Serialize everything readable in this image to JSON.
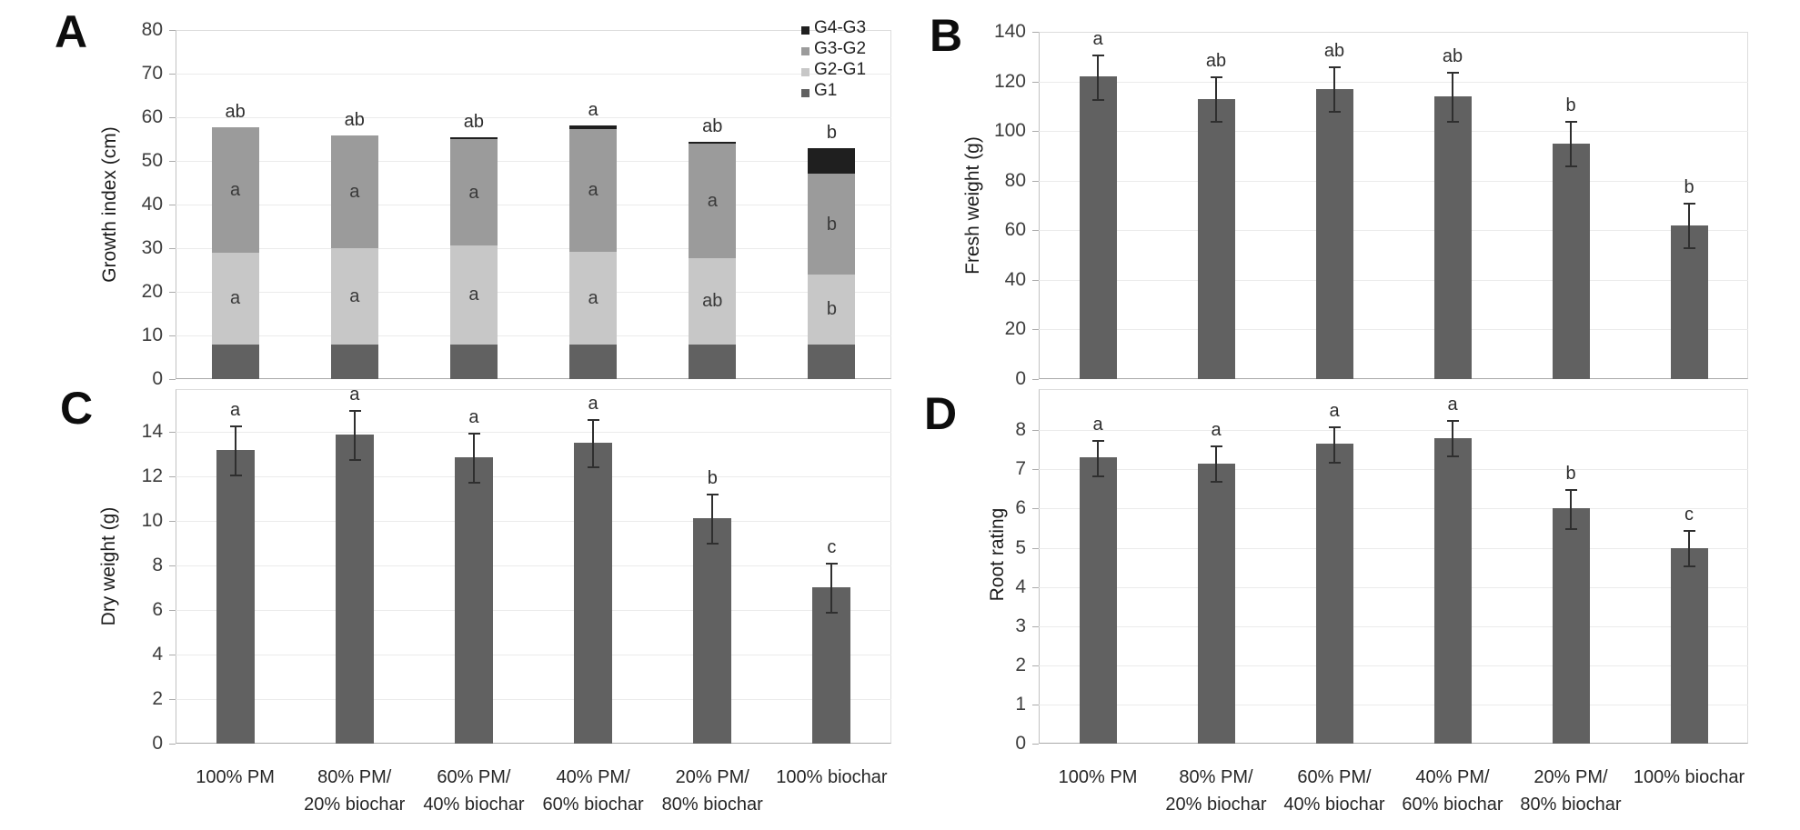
{
  "chart_data": [
    {
      "panel": "A",
      "type": "stacked-bar",
      "ylabel": "Growth index (cm)",
      "ylim": [
        0,
        80
      ],
      "yticks": [
        0,
        10,
        20,
        30,
        40,
        50,
        60,
        70,
        80
      ],
      "grid": true,
      "show_x_labels": false,
      "categories": [
        "100% PM",
        "80% PM/\n20% biochar",
        "60% PM/\n40% biochar",
        "40% PM/\n60% biochar",
        "20% PM/\n80% biochar",
        "100% biochar"
      ],
      "legend_position": "top-right-inside",
      "legend": [
        {
          "label": "G4-G3",
          "color": "#1f1f1f"
        },
        {
          "label": "G3-G2",
          "color": "#9b9b9b"
        },
        {
          "label": "G2-G1",
          "color": "#c7c7c7"
        },
        {
          "label": "G1",
          "color": "#616161"
        }
      ],
      "series": [
        {
          "name": "G1",
          "color": "#616161",
          "values": [
            8,
            8,
            8,
            8,
            8,
            8
          ],
          "labels": [
            "",
            "",
            "",
            "",
            "",
            ""
          ]
        },
        {
          "name": "G2-G1",
          "color": "#c7c7c7",
          "values": [
            21,
            22,
            22.7,
            21.2,
            19.8,
            16
          ],
          "labels": [
            "a",
            "a",
            "a",
            "a",
            "ab",
            "b"
          ]
        },
        {
          "name": "G3-G2",
          "color": "#9b9b9b",
          "values": [
            28.7,
            25.8,
            24.2,
            28.1,
            26.2,
            23
          ],
          "labels": [
            "a",
            "a",
            "a",
            "a",
            "a",
            "b"
          ]
        },
        {
          "name": "G4-G3",
          "color": "#1f1f1f",
          "values": [
            0,
            0,
            0.6,
            0.9,
            0.4,
            6
          ],
          "labels": [
            "",
            "",
            "",
            "",
            "",
            ""
          ]
        }
      ],
      "totals": [
        57.7,
        55.8,
        55.5,
        58.2,
        54.4,
        53
      ],
      "sig_labels": [
        "ab",
        "ab",
        "ab",
        "a",
        "ab",
        "b"
      ]
    },
    {
      "panel": "B",
      "type": "bar",
      "ylabel": "Fresh weight (g)",
      "ylim": [
        0,
        140
      ],
      "yticks": [
        0,
        20,
        40,
        60,
        80,
        100,
        120,
        140
      ],
      "grid": true,
      "show_x_labels": false,
      "categories": [
        "100% PM",
        "80% PM/\n20% biochar",
        "60% PM/\n40% biochar",
        "40% PM/\n60% biochar",
        "20% PM/\n80% biochar",
        "100% biochar"
      ],
      "bar_color": "#616161",
      "values": [
        122,
        113,
        117,
        114,
        95,
        62
      ],
      "errors": [
        9,
        9,
        9,
        10,
        9,
        9
      ],
      "sig_labels": [
        "a",
        "ab",
        "ab",
        "ab",
        "b",
        "b"
      ]
    },
    {
      "panel": "C",
      "type": "bar",
      "ylabel": "Dry weight (g)",
      "ylim": [
        0,
        14
      ],
      "yticks": [
        0,
        2,
        4,
        6,
        8,
        10,
        12,
        14
      ],
      "grid": true,
      "show_x_labels": true,
      "categories": [
        "100% PM",
        "80% PM/\n20% biochar",
        "60% PM/\n40% biochar",
        "40% PM/\n60% biochar",
        "20% PM/\n80% biochar",
        "100% biochar"
      ],
      "bar_color": "#616161",
      "values": [
        13.15,
        13.85,
        12.85,
        13.5,
        10.1,
        7.0
      ],
      "errors": [
        1.1,
        1.1,
        1.1,
        1.05,
        1.1,
        1.1
      ],
      "sig_labels": [
        "a",
        "a",
        "a",
        "a",
        "b",
        "c"
      ]
    },
    {
      "panel": "D",
      "type": "bar",
      "ylabel": "Root rating",
      "ylim": [
        0,
        8
      ],
      "yticks": [
        0,
        1,
        2,
        3,
        4,
        5,
        6,
        7,
        8
      ],
      "grid": true,
      "show_x_labels": true,
      "categories": [
        "100% PM",
        "80% PM/\n20% biochar",
        "60% PM/\n40% biochar",
        "40% PM/\n60% biochar",
        "20% PM/\n80% biochar",
        "100% biochar"
      ],
      "bar_color": "#616161",
      "values": [
        7.3,
        7.15,
        7.65,
        7.8,
        6.0,
        5.0
      ],
      "errors": [
        0.45,
        0.45,
        0.45,
        0.45,
        0.5,
        0.45
      ],
      "sig_labels": [
        "a",
        "a",
        "a",
        "a",
        "b",
        "c"
      ]
    }
  ]
}
